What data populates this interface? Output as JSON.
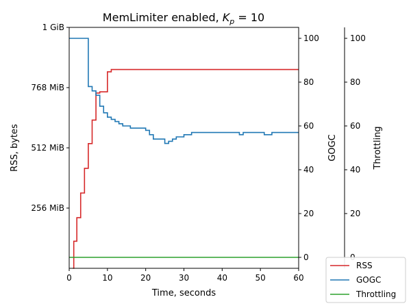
{
  "chart_data": {
    "type": "line",
    "title_prefix": "MemLimiter enabled, ",
    "title_k": "K",
    "title_sub": "p",
    "title_suffix": " = 10",
    "xlabel": "Time, seconds",
    "xlim": [
      0,
      60
    ],
    "x_ticks": [
      "0",
      "10",
      "20",
      "30",
      "40",
      "50",
      "60"
    ],
    "axes": [
      {
        "id": "rss",
        "label": "RSS, bytes",
        "unit": "MiB",
        "ylim": [
          0,
          1024
        ],
        "tick_values": [
          256,
          512,
          768,
          1024
        ],
        "tick_labels": [
          "256 MiB",
          "512 MiB",
          "768 MiB",
          "1 GiB"
        ]
      },
      {
        "id": "gogc",
        "label": "GOGC",
        "ylim": [
          -5,
          105
        ],
        "tick_values": [
          0,
          20,
          40,
          60,
          80,
          100
        ],
        "tick_labels": [
          "0",
          "20",
          "40",
          "60",
          "80",
          "100"
        ]
      },
      {
        "id": "throttling",
        "label": "Throttling",
        "ylim": [
          -5,
          105
        ],
        "tick_values": [
          0,
          20,
          40,
          60,
          80,
          100
        ],
        "tick_labels": [
          "0",
          "20",
          "40",
          "60",
          "80",
          "100"
        ]
      }
    ],
    "series": [
      {
        "name": "RSS",
        "axis": "rss",
        "color": "#d62728",
        "step": true,
        "x": [
          1,
          1.2,
          2,
          3,
          4,
          5,
          6,
          7,
          8,
          10,
          11,
          60
        ],
        "y": [
          0,
          115,
          215,
          320,
          425,
          530,
          630,
          745,
          750,
          835,
          845,
          845
        ]
      },
      {
        "name": "GOGC",
        "axis": "gogc",
        "color": "#1f77b4",
        "step": true,
        "x": [
          0,
          5,
          6,
          7,
          8,
          9,
          10,
          11,
          12,
          13,
          14,
          16,
          20,
          21,
          22,
          25,
          26,
          27,
          28,
          30,
          32,
          35,
          40,
          44.5,
          45.5,
          47,
          51,
          53,
          60
        ],
        "y": [
          100,
          78,
          76,
          74,
          69,
          66,
          64,
          63,
          62,
          61,
          60,
          59,
          58,
          56,
          54,
          52,
          53,
          54,
          55,
          56,
          57,
          57,
          57,
          56,
          57,
          57,
          56,
          57,
          57
        ]
      },
      {
        "name": "Throttling",
        "axis": "throttling",
        "color": "#2ca02c",
        "step": true,
        "x": [
          0,
          60
        ],
        "y": [
          0,
          0
        ]
      }
    ],
    "legend": {
      "placement": "lower-right",
      "entries": [
        "RSS",
        "GOGC",
        "Throttling"
      ]
    }
  }
}
